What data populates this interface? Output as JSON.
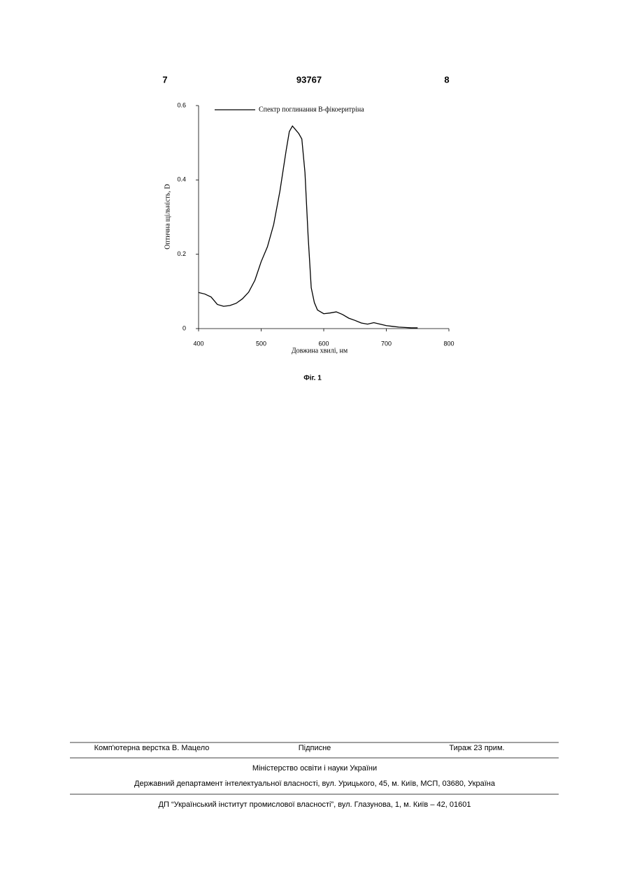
{
  "header": {
    "left_page": "7",
    "patent_number": "93767",
    "right_page": "8"
  },
  "chart_data": {
    "type": "line",
    "x_label": "Довжина хвилі, нм",
    "y_label": "Оптична щільність, D",
    "xlim": [
      400,
      800
    ],
    "xticks": [
      400,
      500,
      600,
      700,
      800
    ],
    "ylim": [
      0,
      0.6
    ],
    "yticks": [
      0,
      0.2,
      0.4,
      0.6
    ],
    "legend": "top",
    "series": [
      {
        "name": "Спектр поглинання В-фікоеритріна",
        "color": "#000000",
        "x": [
          400,
          410,
          420,
          430,
          440,
          450,
          460,
          470,
          480,
          490,
          500,
          510,
          520,
          530,
          540,
          545,
          550,
          555,
          560,
          565,
          570,
          575,
          580,
          585,
          590,
          600,
          610,
          620,
          630,
          640,
          650,
          660,
          670,
          680,
          690,
          700,
          710,
          720,
          730,
          740,
          750
        ],
        "values": [
          0.097,
          0.093,
          0.085,
          0.065,
          0.06,
          0.062,
          0.068,
          0.08,
          0.098,
          0.13,
          0.18,
          0.22,
          0.28,
          0.37,
          0.48,
          0.53,
          0.545,
          0.535,
          0.525,
          0.51,
          0.42,
          0.25,
          0.11,
          0.07,
          0.05,
          0.04,
          0.042,
          0.045,
          0.038,
          0.028,
          0.022,
          0.015,
          0.012,
          0.016,
          0.012,
          0.008,
          0.006,
          0.004,
          0.003,
          0.002,
          0.002
        ]
      }
    ]
  },
  "caption": "Фіг. 1",
  "footer": {
    "typesetting": "Комп'ютерна верстка В. Мацело",
    "subscription": "Підписне",
    "circulation": "Тираж 23 прим.",
    "ministry": "Міністерство освіти і науки України",
    "department": "Державний департамент інтелектуальної власності, вул. Урицького, 45, м. Київ, МСП, 03680, Україна",
    "institute": "ДП “Український інститут промислової власності”, вул. Глазунова, 1, м. Київ – 42, 01601"
  }
}
